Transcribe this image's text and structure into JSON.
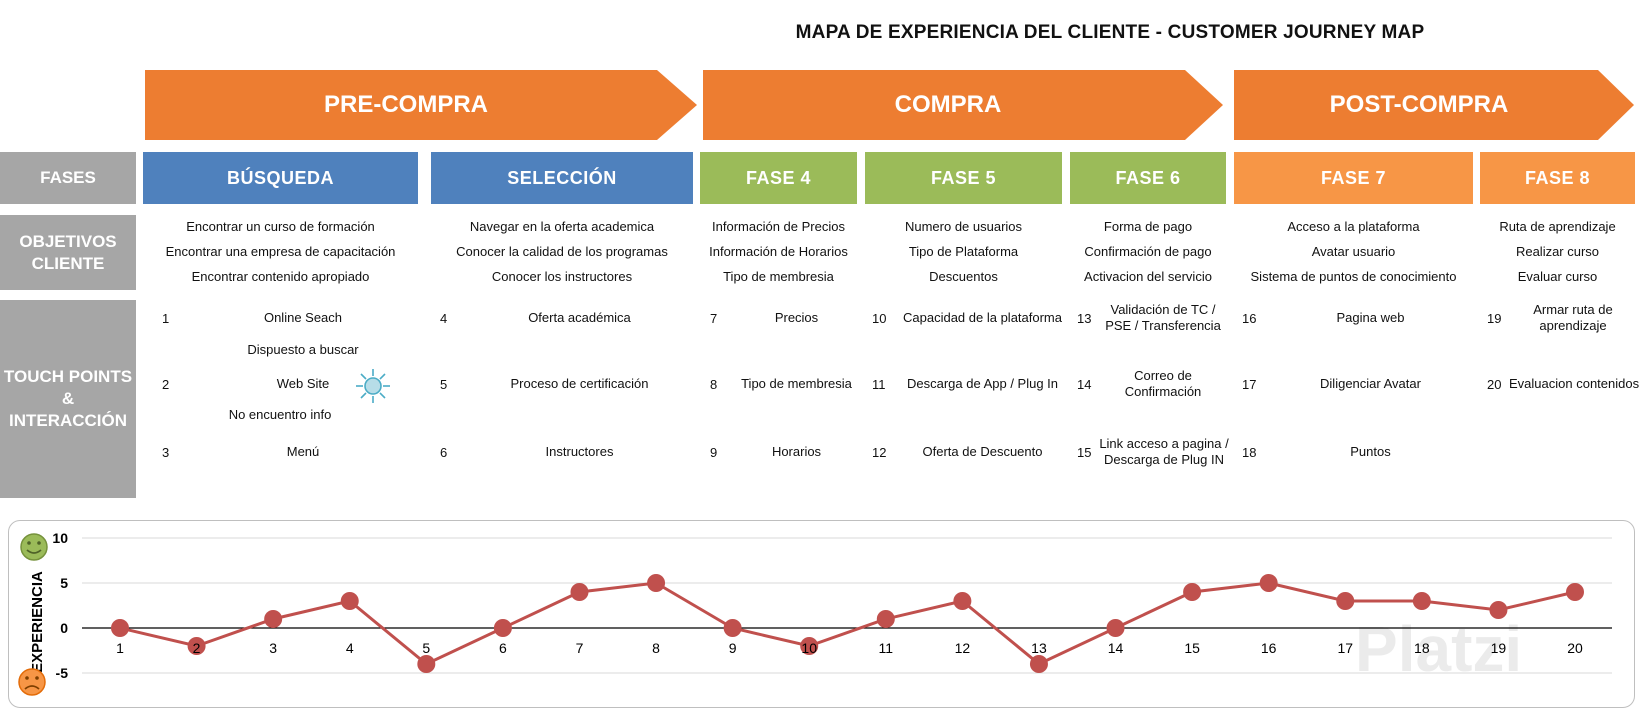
{
  "title": "MAPA DE EXPERIENCIA DEL CLIENTE -  CUSTOMER JOURNEY MAP",
  "stages": [
    {
      "label": "PRE-COMPRA",
      "color": "#ed7d31"
    },
    {
      "label": "COMPRA",
      "color": "#ed7d31"
    },
    {
      "label": "POST-COMPRA",
      "color": "#ed7d31"
    }
  ],
  "row_labels": {
    "phases": "FASES",
    "objectives": [
      "OBJETIVOS",
      "CLIENTE"
    ],
    "touchpoints": [
      "TOUCH POINTS",
      "&",
      "INTERACCIÓN"
    ]
  },
  "phases": [
    {
      "label": "BÚSQUEDA",
      "color": "#4f81bd"
    },
    {
      "label": "SELECCIÓN",
      "color": "#4f81bd"
    },
    {
      "label": "FASE 4",
      "color": "#9bbb59"
    },
    {
      "label": "FASE 5",
      "color": "#9bbb59"
    },
    {
      "label": "FASE 6",
      "color": "#9bbb59"
    },
    {
      "label": "FASE 7",
      "color": "#f79646"
    },
    {
      "label": "FASE 8",
      "color": "#f79646"
    }
  ],
  "objectives": [
    [
      "Encontrar un curso de formación",
      "Encontrar una empresa de capacitación",
      "Encontrar contenido apropiado"
    ],
    [
      "Navegar en la oferta academica",
      "Conocer la calidad de los programas",
      "Conocer los instructores"
    ],
    [
      "Información de Precios",
      "Información de Horarios",
      "Tipo de membresia"
    ],
    [
      "Numero de usuarios",
      "Tipo de Plataforma",
      "Descuentos"
    ],
    [
      "Forma de pago",
      "Confirmación de pago",
      "Activacion del servicio"
    ],
    [
      "Acceso a la plataforma",
      "Avatar usuario",
      "Sistema de puntos de conocimiento"
    ],
    [
      "Ruta de aprendizaje",
      "Realizar curso",
      "Evaluar curso"
    ]
  ],
  "touchpoints": [
    {
      "num": "1",
      "label": "Online Seach"
    },
    {
      "num": "2",
      "label": "Web Site"
    },
    {
      "num": "3",
      "label": "Menú"
    },
    {
      "num": "4",
      "label": "Oferta académica"
    },
    {
      "num": "5",
      "label": "Proceso de certificación"
    },
    {
      "num": "6",
      "label": "Instructores"
    },
    {
      "num": "7",
      "label": "Precios"
    },
    {
      "num": "8",
      "label": "Tipo de membresia"
    },
    {
      "num": "9",
      "label": "Horarios"
    },
    {
      "num": "10",
      "label": "Capacidad de la plataforma"
    },
    {
      "num": "11",
      "label": "Descarga de App / Plug In"
    },
    {
      "num": "12",
      "label": "Oferta de Descuento"
    },
    {
      "num": "13",
      "label": "Validación de TC / PSE / Transferencia"
    },
    {
      "num": "14",
      "label": "Correo de Confirmación"
    },
    {
      "num": "15",
      "label": "Link acceso a pagina / Descarga de Plug IN"
    },
    {
      "num": "16",
      "label": "Pagina web"
    },
    {
      "num": "17",
      "label": "Diligenciar Avatar"
    },
    {
      "num": "18",
      "label": "Puntos"
    },
    {
      "num": "19",
      "label": "Armar ruta de aprendizaje"
    },
    {
      "num": "20",
      "label": "Evaluacion contenidos"
    }
  ],
  "notes": {
    "above_web": "Dispuesto a buscar",
    "below_web": "No encuentro info"
  },
  "watermark": "Platzi",
  "chart_data": {
    "type": "line",
    "ylabel": "EXPERIENCIA",
    "categories": [
      "1",
      "2",
      "3",
      "4",
      "5",
      "6",
      "7",
      "8",
      "9",
      "10",
      "11",
      "12",
      "13",
      "14",
      "15",
      "16",
      "17",
      "18",
      "19",
      "20"
    ],
    "values": [
      0,
      -2,
      1,
      3,
      -4,
      0,
      4,
      5,
      0,
      -2,
      1,
      3,
      -4,
      0,
      4,
      5,
      3,
      3,
      2,
      4
    ],
    "yticks": [
      "10",
      "5",
      "0",
      "-5"
    ],
    "ylim": [
      -5,
      10
    ],
    "line_color": "#c0504d",
    "marker_color": "#c0504d"
  }
}
